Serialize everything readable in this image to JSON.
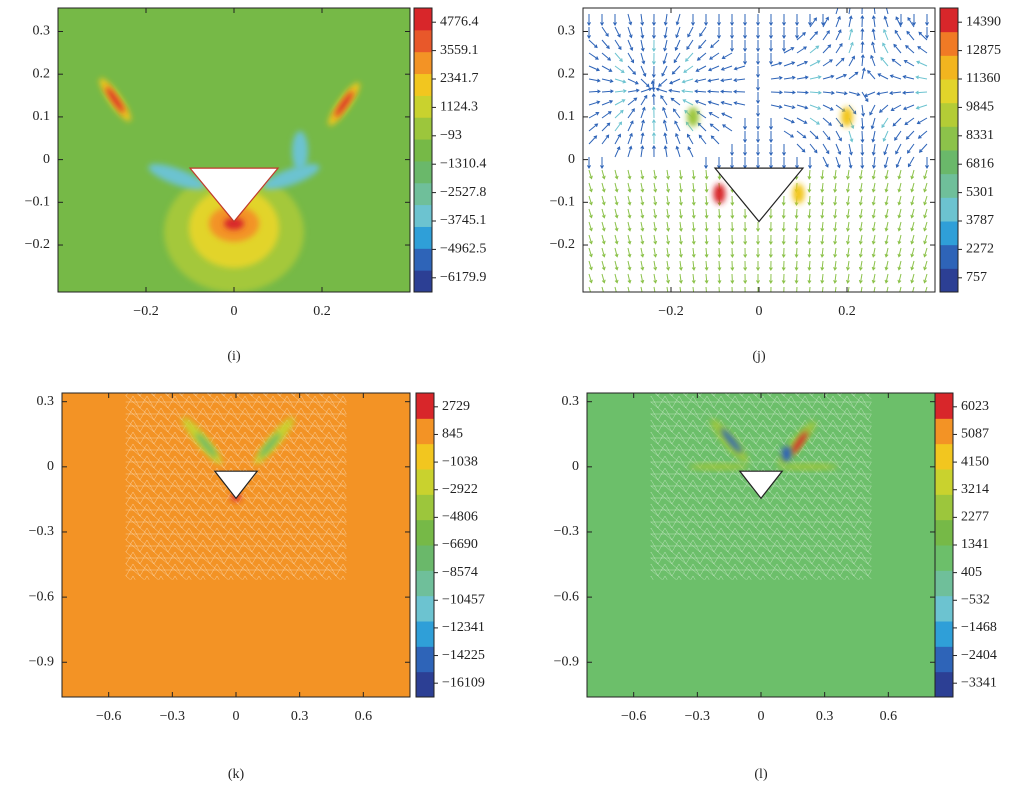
{
  "chart_data": [
    {
      "type": "contour",
      "caption": "(i)",
      "field_color": "#76b947",
      "xlim": [
        -0.4,
        0.4
      ],
      "xticks": [
        {
          "value": -0.2,
          "label": "−0.2"
        },
        0,
        0.2
      ],
      "ylim": [
        -0.31,
        0.355
      ],
      "yticks": [
        {
          "value": -0.2,
          "label": "−0.2"
        },
        {
          "value": -0.1,
          "label": "−0.1"
        },
        0,
        0.1,
        0.2,
        0.3
      ],
      "clim": [
        -6788.6,
        5385.1
      ],
      "cticks": [
        4776.4,
        3559.1,
        2341.7,
        1124.3,
        {
          "value": -93,
          "label": "−93"
        },
        {
          "value": -1310.4,
          "label": "−1310.4"
        },
        {
          "value": -2527.8,
          "label": "−2527.8"
        },
        {
          "value": -3745.1,
          "label": "−3745.1"
        },
        {
          "value": -4962.5,
          "label": "−4962.5"
        },
        {
          "value": -6179.9,
          "label": "−6179.9"
        }
      ],
      "colors": [
        "#2c3f94",
        "#2e64b8",
        "#2f9fd8",
        "#6cc3d0",
        "#6fbf9a",
        "#6ab86a",
        "#76b947",
        "#9cc63c",
        "#c9d22e",
        "#f2c61f",
        "#f39325",
        "#e8582a",
        "#d8262a"
      ]
    },
    {
      "type": "vector",
      "caption": "(j)",
      "field_color": "#ffffff",
      "xlim": [
        -0.4,
        0.4
      ],
      "xticks": [
        {
          "value": -0.2,
          "label": "−0.2"
        },
        0,
        0.2
      ],
      "ylim": [
        -0.31,
        0.355
      ],
      "yticks": [
        {
          "value": -0.2,
          "label": "−0.2"
        },
        {
          "value": -0.1,
          "label": "−0.1"
        },
        0,
        0.1,
        0.2,
        0.3
      ],
      "clim": [
        0,
        15147
      ],
      "cticks": [
        14390,
        12875,
        11360,
        9845,
        8331,
        6816,
        5301,
        3787,
        2272,
        757
      ],
      "colors": [
        "#2c3f94",
        "#2e64b8",
        "#2f9fd8",
        "#6cc3d0",
        "#6fbf9a",
        "#6ab86a",
        "#8cc24a",
        "#b4cc36",
        "#e2d42a",
        "#f2b51f",
        "#f07a25",
        "#d8262a"
      ]
    },
    {
      "type": "contour",
      "caption": "(k)",
      "field_color": "#f39325",
      "xlim": [
        -0.82,
        0.82
      ],
      "xticks": [
        {
          "value": -0.6,
          "label": "−0.6"
        },
        {
          "value": -0.3,
          "label": "−0.3"
        },
        0,
        0.3,
        0.6
      ],
      "ylim": [
        -1.06,
        0.34
      ],
      "yticks": [
        {
          "value": -0.9,
          "label": "−0.9"
        },
        {
          "value": -0.6,
          "label": "−0.6"
        },
        {
          "value": -0.3,
          "label": "−0.3"
        },
        0,
        0.3
      ],
      "clim": [
        -17051,
        3671
      ],
      "cticks": [
        2729,
        845,
        {
          "value": -1038,
          "label": "−1038"
        },
        {
          "value": -2922,
          "label": "−2922"
        },
        {
          "value": -4806,
          "label": "−4806"
        },
        {
          "value": -6690,
          "label": "−6690"
        },
        {
          "value": -8574,
          "label": "−8574"
        },
        {
          "value": -10457,
          "label": "−10457"
        },
        {
          "value": -12341,
          "label": "−12341"
        },
        {
          "value": -14225,
          "label": "−14225"
        },
        {
          "value": -16109,
          "label": "−16109"
        }
      ],
      "colors": [
        "#2c3f94",
        "#2e64b8",
        "#2f9fd8",
        "#6cc3d0",
        "#6fbf9a",
        "#6ab86a",
        "#76b947",
        "#9cc63c",
        "#c9d22e",
        "#f2c61f",
        "#f39325",
        "#d8262a"
      ]
    },
    {
      "type": "contour",
      "caption": "(l)",
      "field_color": "#6cbf6a",
      "xlim": [
        -0.82,
        0.82
      ],
      "xticks": [
        {
          "value": -0.6,
          "label": "−0.6"
        },
        {
          "value": -0.3,
          "label": "−0.3"
        },
        0,
        0.3,
        0.6
      ],
      "ylim": [
        -1.06,
        0.34
      ],
      "yticks": [
        {
          "value": -0.9,
          "label": "−0.9"
        },
        {
          "value": -0.6,
          "label": "−0.6"
        },
        {
          "value": -0.3,
          "label": "−0.3"
        },
        0,
        0.3
      ],
      "clim": [
        -3809,
        6491
      ],
      "cticks": [
        6023,
        5087,
        4150,
        3214,
        2277,
        1341,
        405,
        {
          "value": -532,
          "label": "−532"
        },
        {
          "value": -1468,
          "label": "−1468"
        },
        {
          "value": -2404,
          "label": "−2404"
        },
        {
          "value": -3341,
          "label": "−3341"
        }
      ],
      "colors": [
        "#2c3f94",
        "#2e64b8",
        "#2f9fd8",
        "#6cc3d0",
        "#6fbf9a",
        "#6cbf6a",
        "#76b947",
        "#9cc63c",
        "#c9d22e",
        "#f2c61f",
        "#f39325",
        "#d8262a"
      ]
    }
  ]
}
